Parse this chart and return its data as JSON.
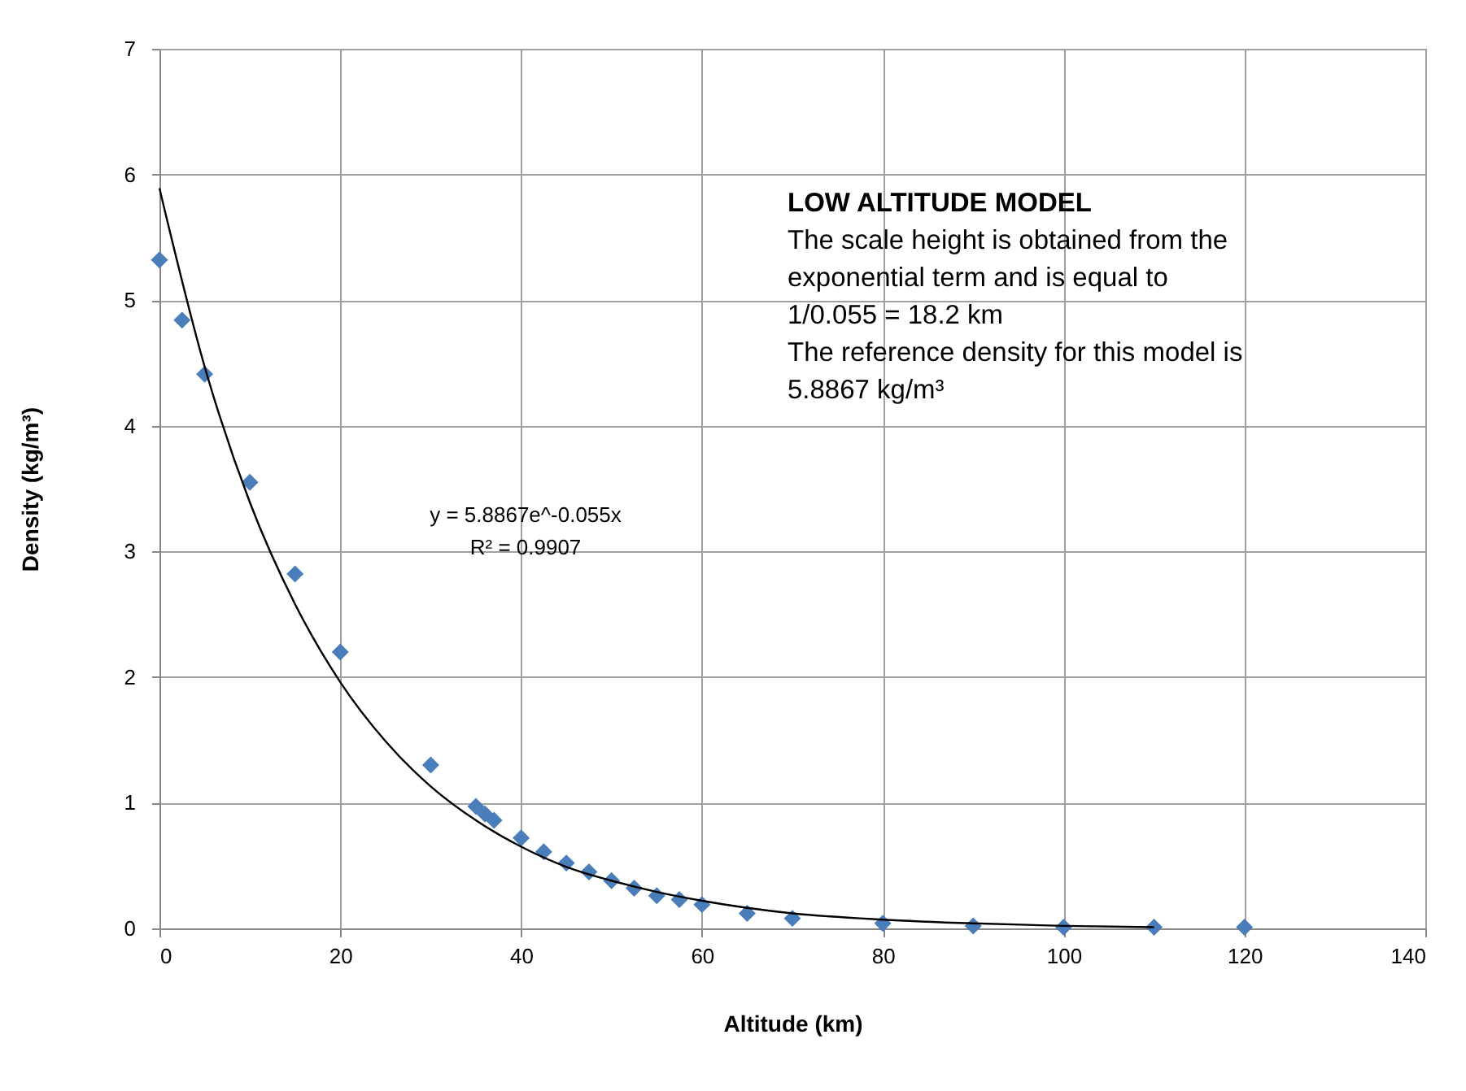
{
  "chart_data": {
    "type": "scatter",
    "xlabel": "Altitude (km)",
    "ylabel": "Density (kg/m³)",
    "xlim": [
      0,
      140
    ],
    "xticks": [
      0,
      20,
      40,
      60,
      80,
      100,
      120,
      140
    ],
    "ylim": [
      0,
      7
    ],
    "yticks": [
      0,
      1,
      2,
      3,
      4,
      5,
      6,
      7
    ],
    "grid": true,
    "marker": "diamond",
    "series": [
      {
        "color": "#4a7ebb",
        "x": [
          0,
          2.5,
          5,
          10,
          15,
          20,
          30,
          35,
          36,
          37,
          40,
          42.5,
          45,
          47.5,
          50,
          52.5,
          55,
          57.5,
          60,
          65,
          70,
          80,
          90,
          100,
          110,
          120
        ],
        "values": [
          5.32,
          4.84,
          4.41,
          3.55,
          2.82,
          2.2,
          1.3,
          0.97,
          0.91,
          0.86,
          0.72,
          0.61,
          0.52,
          0.45,
          0.38,
          0.32,
          0.26,
          0.23,
          0.19,
          0.12,
          0.08,
          0.04,
          0.02,
          0.01,
          0.01,
          0.01
        ]
      },
      {
        "type": "line",
        "color": "#000000",
        "marker": "none",
        "line_style": "solid",
        "x": [
          0,
          5,
          10,
          15,
          20,
          25,
          30,
          35,
          40,
          45,
          50,
          55,
          60,
          70,
          80,
          90,
          100,
          110
        ],
        "values": [
          5.89,
          4.47,
          3.39,
          2.58,
          1.96,
          1.49,
          1.13,
          0.86,
          0.65,
          0.49,
          0.38,
          0.29,
          0.22,
          0.12,
          0.07,
          0.04,
          0.02,
          0.01
        ]
      }
    ],
    "annotations": [
      "LOW ALTITUDE MODEL",
      " The scale height is obtained from the",
      "exponential term and is equal to",
      "1/0.055 = 18.2 km",
      "The reference density for this model is",
      "5.8867 kg/m³",
      "y = 5.8867e^-0.055x",
      "R² = 0.9907"
    ]
  }
}
